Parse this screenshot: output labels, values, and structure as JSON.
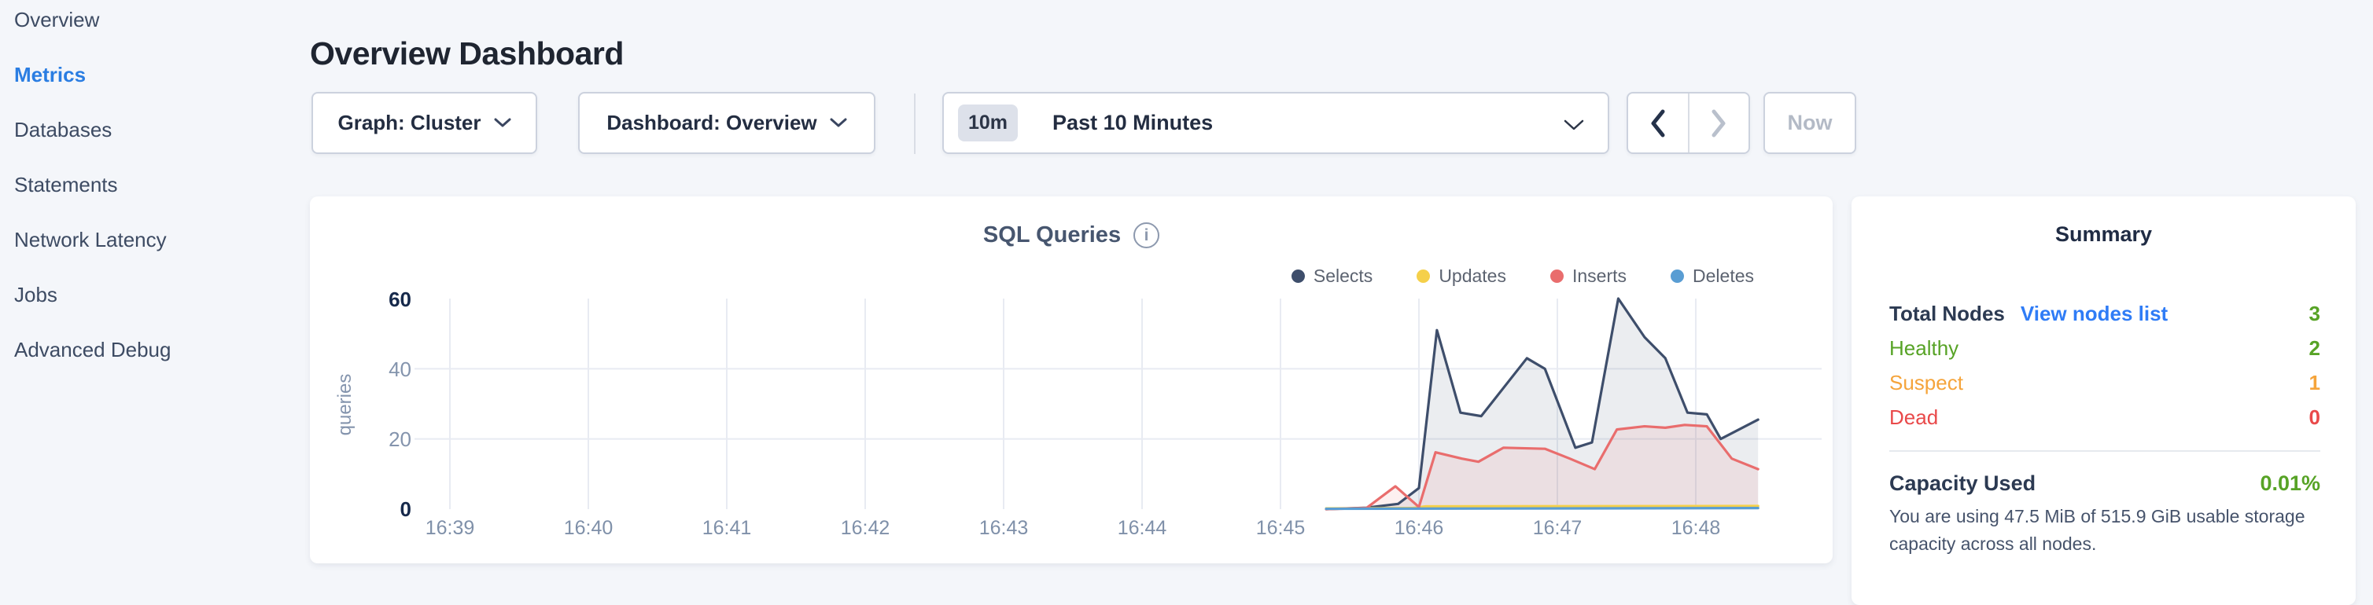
{
  "sidebar": {
    "items": [
      {
        "label": "Overview"
      },
      {
        "label": "Metrics",
        "active": true,
        "color": "#2a7de2"
      },
      {
        "label": "Databases"
      },
      {
        "label": "Statements"
      },
      {
        "label": "Network Latency"
      },
      {
        "label": "Jobs"
      },
      {
        "label": "Advanced Debug"
      }
    ]
  },
  "header": {
    "title": "Overview Dashboard"
  },
  "toolbar": {
    "graph_dropdown": "Graph: Cluster",
    "dashboard_dropdown": "Dashboard: Overview",
    "time_badge": "10m",
    "time_label": "Past 10 Minutes",
    "now_label": "Now"
  },
  "chart_card": {
    "title": "SQL Queries",
    "info_glyph": "i"
  },
  "chart_data": {
    "type": "area",
    "title": "SQL Queries",
    "ylabel": "queries",
    "ylim": [
      0,
      60
    ],
    "grid": "light",
    "legend_position": "top-right",
    "x_unit": "minutes after 16:39",
    "x_ticks": [
      "16:39",
      "16:40",
      "16:41",
      "16:42",
      "16:43",
      "16:44",
      "16:45",
      "16:46",
      "16:47",
      "16:48"
    ],
    "y_ticks": [
      {
        "label": "60",
        "emph": true
      },
      {
        "label": "40",
        "emph": false
      },
      {
        "label": "20",
        "emph": false
      },
      {
        "label": "0",
        "emph": true
      }
    ],
    "series": [
      {
        "name": "Selects",
        "color": "#3e4e6b",
        "fill": "rgba(62,78,107,0.10)",
        "points": [
          [
            6.33,
            0
          ],
          [
            6.62,
            0.4
          ],
          [
            6.85,
            1.5
          ],
          [
            7.0,
            6
          ],
          [
            7.13,
            51
          ],
          [
            7.3,
            27.5
          ],
          [
            7.45,
            26.5
          ],
          [
            7.78,
            43
          ],
          [
            7.91,
            40
          ],
          [
            8.13,
            17.5
          ],
          [
            8.25,
            19
          ],
          [
            8.44,
            60
          ],
          [
            8.63,
            49
          ],
          [
            8.78,
            43
          ],
          [
            8.94,
            27.5
          ],
          [
            9.08,
            27
          ],
          [
            9.18,
            20
          ],
          [
            9.45,
            25.5
          ]
        ]
      },
      {
        "name": "Updates",
        "color": "#f5d04a",
        "points": [
          [
            6.33,
            0.2
          ],
          [
            6.95,
            0.3
          ],
          [
            7.05,
            0.8
          ],
          [
            9.45,
            0.9
          ]
        ]
      },
      {
        "name": "Inserts",
        "color": "#e96d6d",
        "fill": "rgba(233,109,109,0.10)",
        "points": [
          [
            6.33,
            0
          ],
          [
            6.62,
            0.3
          ],
          [
            6.83,
            6.5
          ],
          [
            7.0,
            0.6
          ],
          [
            7.12,
            16.2
          ],
          [
            7.31,
            14.4
          ],
          [
            7.43,
            13.5
          ],
          [
            7.61,
            17.5
          ],
          [
            7.91,
            17.2
          ],
          [
            8.09,
            14.4
          ],
          [
            8.27,
            11.4
          ],
          [
            8.43,
            22.7
          ],
          [
            8.63,
            23.6
          ],
          [
            8.78,
            23.2
          ],
          [
            8.92,
            24
          ],
          [
            9.08,
            23.6
          ],
          [
            9.26,
            14.4
          ],
          [
            9.45,
            11.4
          ]
        ]
      },
      {
        "name": "Deletes",
        "color": "#599dd3",
        "points": [
          [
            6.33,
            0.1
          ],
          [
            9.45,
            0.3
          ]
        ]
      }
    ]
  },
  "summary": {
    "title": "Summary",
    "rows": [
      {
        "label": "Total Nodes",
        "link": "View nodes list",
        "link_color": "#2f7cf6",
        "value": "3",
        "label_color": "#2c3a52",
        "value_color": "#57a326"
      },
      {
        "label": "Healthy",
        "value": "2",
        "label_color": "#57a326",
        "value_color": "#57a326"
      },
      {
        "label": "Suspect",
        "value": "1",
        "label_color": "#f5a43b",
        "value_color": "#f5a43b"
      },
      {
        "label": "Dead",
        "value": "0",
        "label_color": "#e9494a",
        "value_color": "#e9494a"
      }
    ],
    "capacity_label": "Capacity Used",
    "capacity_value": "0.01%",
    "capacity_value_color": "#57a326",
    "note_line1": "You are using 47.5 MiB of 515.9 GiB usable storage",
    "note_line2": "capacity across all nodes."
  },
  "colors": {
    "accent_blue": "#2a7de2",
    "healthy_green": "#57a326",
    "suspect_orange": "#f5a43b",
    "dead_red": "#e9494a",
    "page_background": "#f4f6fa"
  }
}
